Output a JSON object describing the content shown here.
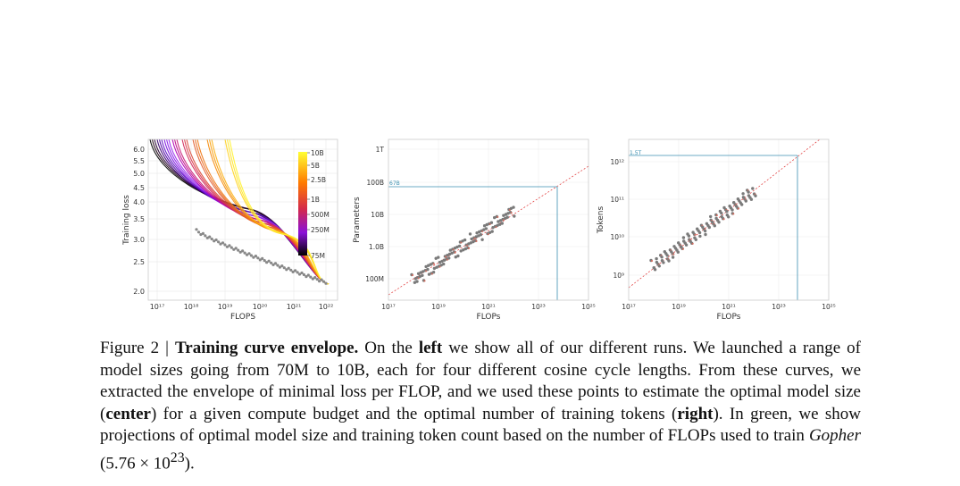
{
  "figure": {
    "left_panel": {
      "ylabel": "Training loss",
      "xlabel": "FLOPS",
      "y_ticks": [
        "6.0",
        "5.5",
        "5.0",
        "4.5",
        "4.0",
        "3.5",
        "3.0",
        "2.5",
        "2.0"
      ],
      "x_ticks": [
        "10¹⁷",
        "10¹⁸",
        "10¹⁹",
        "10²⁰",
        "10²¹",
        "10²²"
      ],
      "colorbar_labels": [
        "10B",
        "5B",
        "2.5B",
        "1B",
        "500M",
        "250M",
        "75M"
      ]
    },
    "center_panel": {
      "ylabel": "Parameters",
      "xlabel": "FLOPs",
      "y_ticks": [
        "1T",
        "100B",
        "10B",
        "1.0B",
        "100M"
      ],
      "x_ticks": [
        "10¹⁷",
        "10¹⁹",
        "10²¹",
        "10²³",
        "10²⁵"
      ],
      "projection_label": "67B"
    },
    "right_panel": {
      "ylabel": "Tokens",
      "xlabel": "FLOPs",
      "y_ticks": [
        "10¹²",
        "10¹¹",
        "10¹⁰",
        "10⁹"
      ],
      "x_ticks": [
        "10¹⁷",
        "10¹⁹",
        "10²¹",
        "10²³",
        "10²⁵"
      ],
      "projection_label": "1.5T"
    }
  },
  "chart_data": [
    {
      "type": "line",
      "xscale": "log",
      "xlim": [
        1e+17,
        1e+22
      ],
      "ylim": [
        2.0,
        6.0
      ],
      "xlabel": "FLOPS",
      "ylabel": "Training loss",
      "colorbar": {
        "labels": [
          "10B",
          "5B",
          "2.5B",
          "1B",
          "500M",
          "250M",
          "75M"
        ],
        "colors": [
          "#ffff33",
          "#ff6a00",
          "#b0008c",
          "#000000"
        ]
      },
      "envelope_points": [
        [
          3e+18,
          3.1
        ],
        [
          1e+19,
          2.85
        ],
        [
          1e+20,
          2.55
        ],
        [
          1e+21,
          2.3
        ],
        [
          1e+22,
          2.1
        ]
      ],
      "grid": true
    },
    {
      "type": "scatter",
      "xscale": "log",
      "yscale": "log",
      "xlim": [
        1e+17,
        1e+25
      ],
      "xlabel": "FLOPs",
      "ylabel": "Parameters",
      "points": [
        [
          3e+17,
          100000000.0
        ],
        [
          1e+18,
          150000000.0
        ],
        [
          3e+18,
          250000000.0
        ],
        [
          1e+19,
          400000000.0
        ],
        [
          3e+19,
          700000000.0
        ],
        [
          1e+20,
          1200000000.0
        ],
        [
          3e+20,
          2000000000.0
        ],
        [
          1e+21,
          3500000000.0
        ],
        [
          3e+21,
          6000000000.0
        ],
        [
          1e+22,
          10000000000.0
        ]
      ],
      "fit_line": [
        [
          1e+17,
          25000000.0
        ],
        [
          1e+25,
          400000000000.0
        ]
      ],
      "projection": {
        "x": 5.76e+23,
        "y": 67000000000.0,
        "label": "67B"
      },
      "grid": true
    },
    {
      "type": "scatter",
      "xscale": "log",
      "yscale": "log",
      "xlim": [
        1e+17,
        1e+25
      ],
      "xlabel": "FLOPs",
      "ylabel": "Tokens",
      "points": [
        [
          3e+17,
          500000000.0
        ],
        [
          1e+18,
          1000000000.0
        ],
        [
          3e+18,
          1500000000.0
        ],
        [
          1e+19,
          3000000000.0
        ],
        [
          3e+19,
          5000000000.0
        ],
        [
          1e+20,
          10000000000.0
        ],
        [
          3e+20,
          15000000000.0
        ],
        [
          1e+21,
          30000000000.0
        ],
        [
          3e+21,
          60000000000.0
        ],
        [
          1e+22,
          150000000000.0
        ]
      ],
      "fit_line": [
        [
          1e+17,
          120000000.0
        ],
        [
          1e+25,
          4000000000000.0
        ]
      ],
      "projection": {
        "x": 5.76e+23,
        "y": 1500000000000.0,
        "label": "1.5T"
      },
      "grid": true
    }
  ],
  "caption": {
    "prefix": "Figure 2 | ",
    "title": "Training curve envelope.",
    "t1": " On the ",
    "left": "left",
    "t2": " we show all of our different runs. We launched a range of model sizes going from 70M to 10B, each for four different cosine cycle lengths. From these curves, we extracted the envelope of minimal loss per FLOP, and we used these points to estimate the optimal model size (",
    "center": "center",
    "t3": ") for a given compute budget and the optimal number of training tokens (",
    "right": "right",
    "t4": "). In green, we show projections of optimal model size and training token count based on the number of FLOPs used to train ",
    "gopher": "Gopher",
    "t5": " (5.76 × 10",
    "exp": "23",
    "t6": ")."
  }
}
